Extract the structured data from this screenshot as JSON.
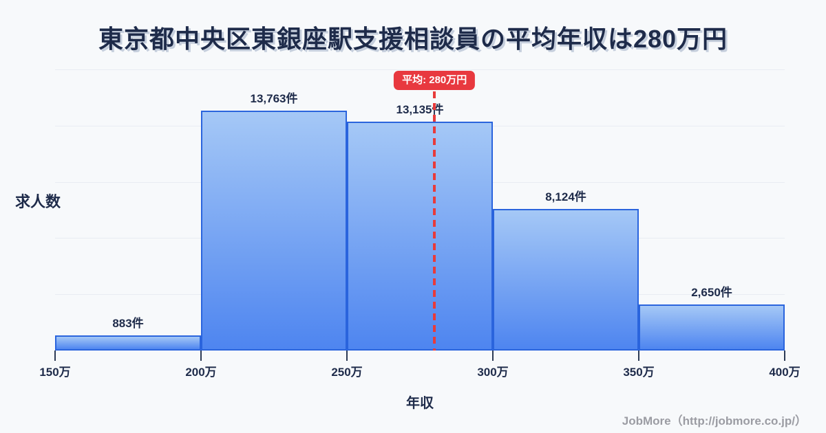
{
  "title": "東京都中央区東銀座駅支援相談員の平均年収は280万円",
  "chart_data": {
    "type": "bar",
    "title": "東京都中央区東銀座駅支援相談員の平均年収は280万円",
    "xlabel": "年収",
    "ylabel": "求人数",
    "x_tick_labels": [
      "150万",
      "200万",
      "250万",
      "300万",
      "350万",
      "400万"
    ],
    "x_range_man": [
      150,
      400
    ],
    "categories": [
      "150万-200万",
      "200万-250万",
      "250万-300万",
      "300万-350万",
      "350万-400万"
    ],
    "values": [
      883,
      13763,
      13135,
      8124,
      2650
    ],
    "bar_labels": [
      "883件",
      "13,763件",
      "13,135件",
      "8,124件",
      "2,650件"
    ],
    "average_line": {
      "value_man": 280,
      "label": "平均: 280万円"
    },
    "grid": true,
    "legend": false,
    "colors": {
      "background": "#f7f9fb",
      "text": "#1e2b4a",
      "gridline": "#e8ecf2",
      "bar_fill_top": "#a5c8f6",
      "bar_fill_bottom": "#4e85f0",
      "bar_border": "#2a64dd",
      "average_line": "#e83b3b",
      "badge_bg": "#e8393f",
      "badge_text": "#ffffff",
      "footer_text": "#9b9ca3"
    }
  },
  "footer": {
    "credit": "JobMore（http://jobmore.co.jp/）"
  }
}
